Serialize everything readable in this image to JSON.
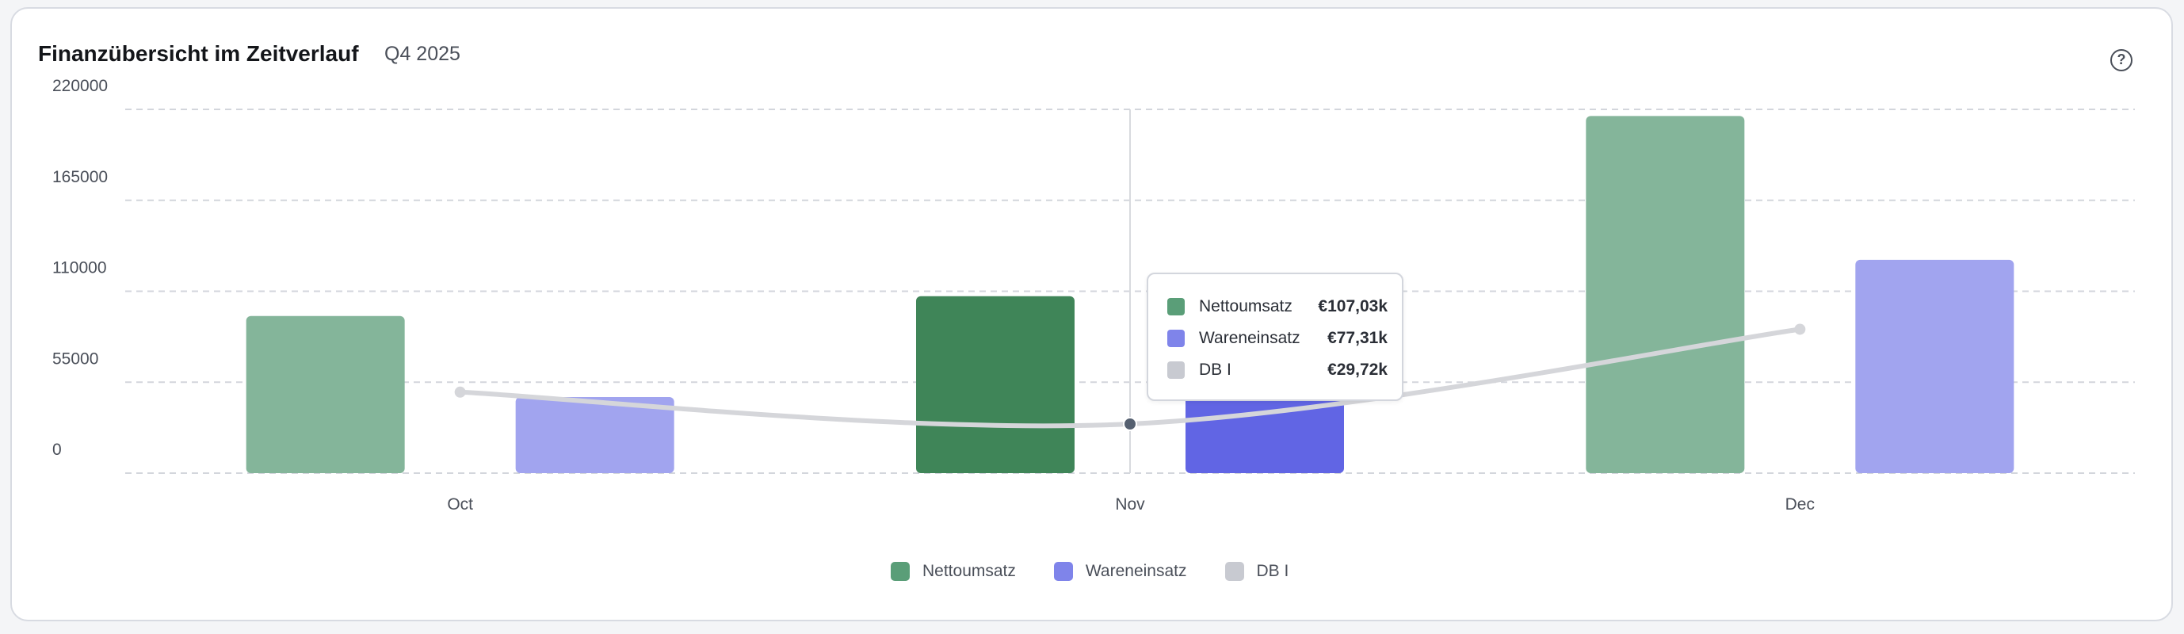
{
  "header": {
    "title": "Finanzübersicht im Zeitverlauf",
    "period": "Q4 2025",
    "help_icon": "question-circle-icon"
  },
  "tooltip": {
    "rows": [
      {
        "label": "Nettoumsatz",
        "value": "€107,03k",
        "color": "#5a9e78"
      },
      {
        "label": "Wareneinsatz",
        "value": "€77,31k",
        "color": "#7f84ea"
      },
      {
        "label": "DB I",
        "value": "€29,72k",
        "color": "#c8cad1"
      }
    ]
  },
  "legend": [
    {
      "label": "Nettoumsatz",
      "color": "#5a9e78"
    },
    {
      "label": "Wareneinsatz",
      "color": "#7f84ea"
    },
    {
      "label": "DB I",
      "color": "#c8cad1"
    }
  ],
  "chart_data": {
    "type": "bar",
    "title": "Finanzübersicht im Zeitverlauf",
    "subtitle": "Q4 2025",
    "categories": [
      "Oct",
      "Nov",
      "Dec"
    ],
    "series": [
      {
        "name": "Nettoumsatz",
        "type": "bar",
        "values": [
          95000,
          107030,
          216000
        ],
        "color": "#84b59a",
        "active_color": "#3f8558"
      },
      {
        "name": "Wareneinsatz",
        "type": "bar",
        "values": [
          46000,
          77310,
          129000
        ],
        "color": "#a1a4ef",
        "active_color": "#6165e4"
      },
      {
        "name": "DB I",
        "type": "line",
        "values": [
          49000,
          29720,
          87000
        ],
        "color": "#d5d6da"
      }
    ],
    "yticks": [
      0,
      55000,
      110000,
      165000,
      220000
    ],
    "ylim": [
      0,
      220000
    ],
    "grid": true,
    "legend_position": "bottom",
    "active_category": "Nov"
  }
}
